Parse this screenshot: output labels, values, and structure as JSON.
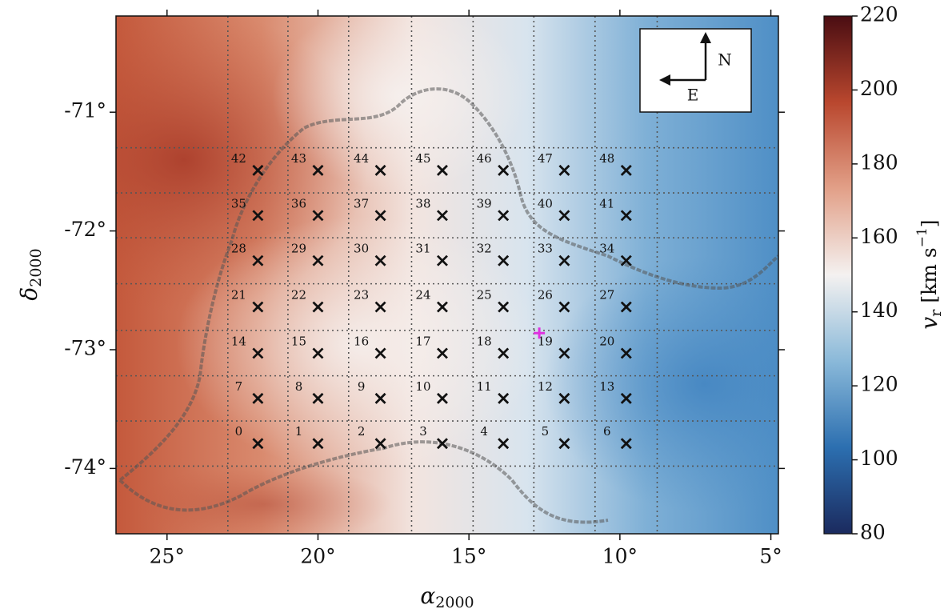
{
  "chart_data": {
    "type": "map",
    "x_label": {
      "symbol": "α",
      "subscript": "2000"
    },
    "y_label": {
      "symbol": "δ",
      "subscript": "2000"
    },
    "xlim": [
      26.69,
      4.75
    ],
    "ylim": [
      -74.55,
      -70.19
    ],
    "xticks": [
      {
        "value": 25,
        "label": "25°"
      },
      {
        "value": 20,
        "label": "20°"
      },
      {
        "value": 15,
        "label": "15°"
      },
      {
        "value": 10,
        "label": "10°"
      },
      {
        "value": 5,
        "label": "5°"
      }
    ],
    "yticks": [
      {
        "value": -71,
        "label": "-71°"
      },
      {
        "value": -72,
        "label": "-72°"
      },
      {
        "value": -73,
        "label": "-73°"
      },
      {
        "value": -74,
        "label": "-74°"
      }
    ],
    "colorbar": {
      "label": {
        "symbol": "v",
        "subscript": "r",
        "unit": "[km s",
        "exponent": "−1",
        "close": "]"
      },
      "lim": [
        80,
        220
      ],
      "ticks": [
        80,
        100,
        120,
        140,
        160,
        180,
        200,
        220
      ],
      "colors": [
        "#1b2a5e",
        "#2c6fb0",
        "#8ab9d9",
        "#f4f1f0",
        "#e2a088",
        "#b9472e",
        "#4a0d12"
      ]
    },
    "compass": {
      "north": "N",
      "east": "E"
    },
    "center_marker": {
      "x": 12.67,
      "y": -72.86,
      "color": "#e030e0"
    },
    "marker_color": "#111111",
    "fields": [
      {
        "label": "0",
        "x": 21.99,
        "y": -73.79
      },
      {
        "label": "1",
        "x": 20.0,
        "y": -73.79
      },
      {
        "label": "2",
        "x": 17.93,
        "y": -73.79
      },
      {
        "label": "3",
        "x": 15.88,
        "y": -73.79
      },
      {
        "label": "4",
        "x": 13.86,
        "y": -73.79
      },
      {
        "label": "5",
        "x": 11.84,
        "y": -73.79
      },
      {
        "label": "6",
        "x": 9.79,
        "y": -73.79
      },
      {
        "label": "7",
        "x": 21.99,
        "y": -73.41
      },
      {
        "label": "8",
        "x": 20.0,
        "y": -73.41
      },
      {
        "label": "9",
        "x": 17.93,
        "y": -73.41
      },
      {
        "label": "10",
        "x": 15.88,
        "y": -73.41
      },
      {
        "label": "11",
        "x": 13.86,
        "y": -73.41
      },
      {
        "label": "12",
        "x": 11.84,
        "y": -73.41
      },
      {
        "label": "13",
        "x": 9.79,
        "y": -73.41
      },
      {
        "label": "14",
        "x": 21.99,
        "y": -73.03
      },
      {
        "label": "15",
        "x": 20.0,
        "y": -73.03
      },
      {
        "label": "16",
        "x": 17.93,
        "y": -73.03
      },
      {
        "label": "17",
        "x": 15.88,
        "y": -73.03
      },
      {
        "label": "18",
        "x": 13.86,
        "y": -73.03
      },
      {
        "label": "19",
        "x": 11.84,
        "y": -73.03
      },
      {
        "label": "20",
        "x": 9.79,
        "y": -73.03
      },
      {
        "label": "21",
        "x": 21.99,
        "y": -72.64
      },
      {
        "label": "22",
        "x": 20.0,
        "y": -72.64
      },
      {
        "label": "23",
        "x": 17.93,
        "y": -72.64
      },
      {
        "label": "24",
        "x": 15.88,
        "y": -72.64
      },
      {
        "label": "25",
        "x": 13.86,
        "y": -72.64
      },
      {
        "label": "26",
        "x": 11.84,
        "y": -72.64
      },
      {
        "label": "27",
        "x": 9.79,
        "y": -72.64
      },
      {
        "label": "28",
        "x": 21.99,
        "y": -72.25
      },
      {
        "label": "29",
        "x": 20.0,
        "y": -72.25
      },
      {
        "label": "30",
        "x": 17.93,
        "y": -72.25
      },
      {
        "label": "31",
        "x": 15.88,
        "y": -72.25
      },
      {
        "label": "32",
        "x": 13.86,
        "y": -72.25
      },
      {
        "label": "33",
        "x": 11.84,
        "y": -72.25
      },
      {
        "label": "34",
        "x": 9.79,
        "y": -72.25
      },
      {
        "label": "35",
        "x": 21.99,
        "y": -71.87
      },
      {
        "label": "36",
        "x": 20.0,
        "y": -71.87
      },
      {
        "label": "37",
        "x": 17.93,
        "y": -71.87
      },
      {
        "label": "38",
        "x": 15.88,
        "y": -71.87
      },
      {
        "label": "39",
        "x": 13.86,
        "y": -71.87
      },
      {
        "label": "40",
        "x": 11.84,
        "y": -71.87
      },
      {
        "label": "41",
        "x": 9.79,
        "y": -71.87
      },
      {
        "label": "42",
        "x": 21.99,
        "y": -71.49
      },
      {
        "label": "43",
        "x": 20.0,
        "y": -71.49
      },
      {
        "label": "44",
        "x": 17.93,
        "y": -71.49
      },
      {
        "label": "45",
        "x": 15.88,
        "y": -71.49
      },
      {
        "label": "46",
        "x": 13.86,
        "y": -71.49
      },
      {
        "label": "47",
        "x": 11.84,
        "y": -71.49
      },
      {
        "label": "48",
        "x": 9.79,
        "y": -71.49
      }
    ]
  }
}
